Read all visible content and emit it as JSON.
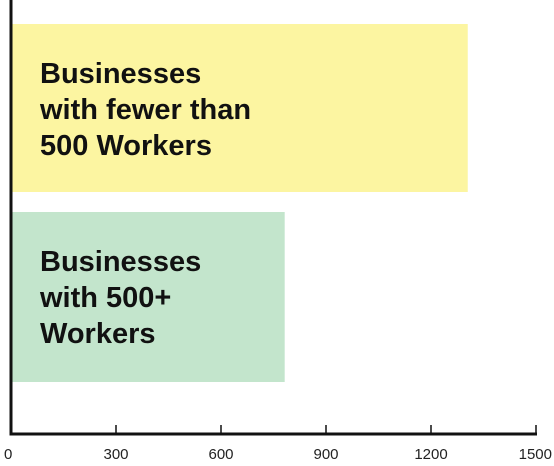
{
  "chart_data": {
    "type": "bar",
    "orientation": "horizontal",
    "categories": [
      [
        "Businesses",
        "with fewer than",
        "500 Workers"
      ],
      [
        "Businesses",
        "with 500+",
        "Workers"
      ]
    ],
    "values": [
      1305,
      782
    ],
    "colors": [
      "#fcf5a1",
      "#c3e5cc"
    ],
    "xlim": [
      0,
      1500
    ],
    "xticks": [
      0,
      300,
      600,
      900,
      1200,
      1500
    ],
    "xtick_labels": [
      "0",
      "300",
      "600",
      "900",
      "1200",
      "1500"
    ],
    "title": "",
    "xlabel": "",
    "ylabel": "",
    "grid": false,
    "legend": "none"
  }
}
